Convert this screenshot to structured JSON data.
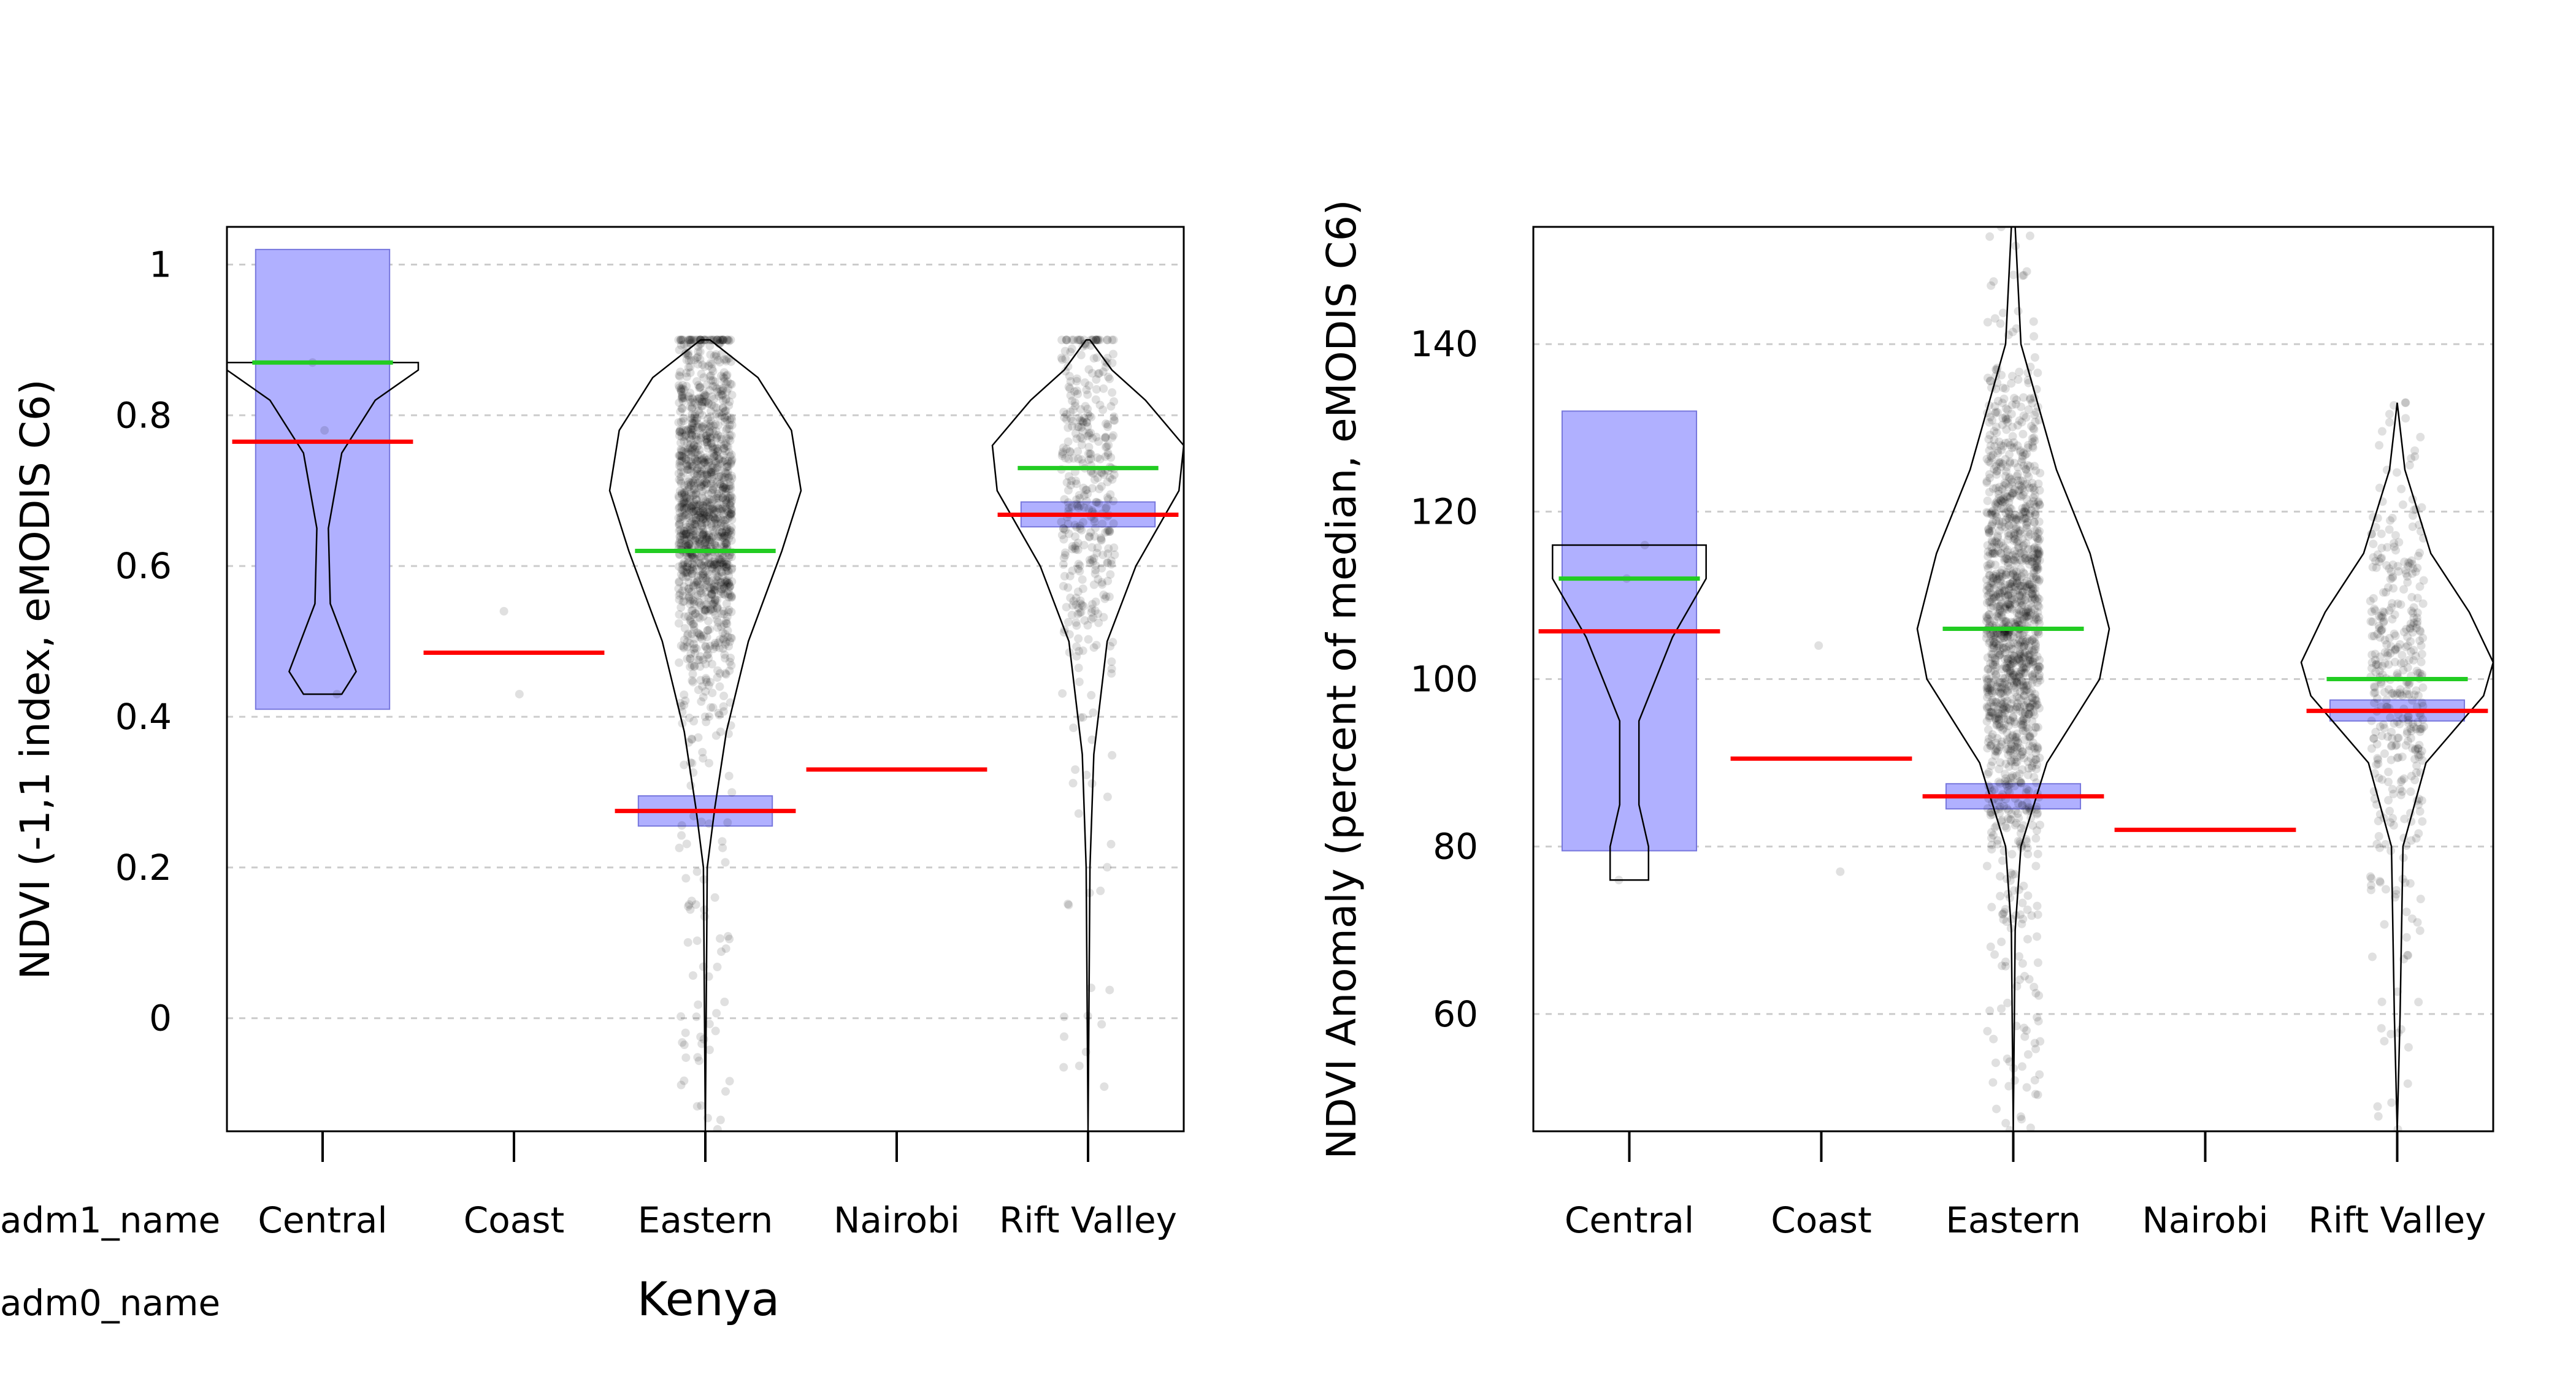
{
  "chart_data": [
    {
      "type": "pirateplot",
      "ylabel": "NDVI (-1,1 index, eMODIS C6)",
      "ylim": [
        -0.15,
        1.05
      ],
      "yticks": [
        0,
        0.2,
        0.4,
        0.6,
        0.8,
        1
      ],
      "ytick_labels": [
        "0",
        "0.2",
        "0.4",
        "0.6",
        "0.8",
        "1"
      ],
      "categories": [
        "Central",
        "Coast",
        "Eastern",
        "Nairobi",
        "Rift Valley"
      ],
      "row_labels": {
        "adm1": "adm1_name",
        "adm0": "adm0_name"
      },
      "group_label": "Kenya",
      "grid": true,
      "series": [
        {
          "category": "Central",
          "mean": 0.765,
          "median": 0.87,
          "ci": [
            0.41,
            1.02
          ],
          "points_range": [
            0.43,
            0.87
          ],
          "n_points": 3
        },
        {
          "category": "Coast",
          "mean": 0.485,
          "median": null,
          "ci": null,
          "points_range": [
            0.43,
            0.54
          ],
          "n_points": 2
        },
        {
          "category": "Eastern",
          "mean": 0.275,
          "median": 0.62,
          "ci": [
            0.255,
            0.295
          ],
          "points_range": [
            -0.15,
            0.9
          ],
          "n_points": 1400
        },
        {
          "category": "Nairobi",
          "mean": 0.33,
          "median": null,
          "ci": null,
          "points_range": [
            0.33,
            0.33
          ],
          "n_points": 1
        },
        {
          "category": "Rift Valley",
          "mean": 0.668,
          "median": 0.73,
          "ci": [
            0.652,
            0.685
          ],
          "points_range": [
            -0.15,
            0.9
          ],
          "n_points": 400
        }
      ]
    },
    {
      "type": "pirateplot",
      "ylabel": "NDVI Anomaly (percent of median, eMODIS C6)",
      "ylim": [
        46,
        154
      ],
      "yticks": [
        60,
        80,
        100,
        120,
        140
      ],
      "ytick_labels": [
        "60",
        "80",
        "100",
        "120",
        "140"
      ],
      "categories": [
        "Central",
        "Coast",
        "Eastern",
        "Nairobi",
        "Rift Valley"
      ],
      "grid": true,
      "series": [
        {
          "category": "Central",
          "mean": 105.7,
          "median": 112,
          "ci": [
            79.5,
            132
          ],
          "points_range": [
            76,
            116
          ],
          "n_points": 3
        },
        {
          "category": "Coast",
          "mean": 90.5,
          "median": null,
          "ci": null,
          "points_range": [
            77,
            104
          ],
          "n_points": 2
        },
        {
          "category": "Eastern",
          "mean": 86,
          "median": 106,
          "ci": [
            84.5,
            87.5
          ],
          "points_range": [
            46,
            154
          ],
          "n_points": 1400
        },
        {
          "category": "Nairobi",
          "mean": 82,
          "median": null,
          "ci": null,
          "points_range": [
            82,
            82
          ],
          "n_points": 1
        },
        {
          "category": "Rift Valley",
          "mean": 96.2,
          "median": 100,
          "ci": [
            95,
            97.5
          ],
          "points_range": [
            46,
            133
          ],
          "n_points": 400
        }
      ]
    }
  ],
  "colors": {
    "mean": "#ff0000",
    "median": "#22cc22",
    "ci_fill": "#b0b0ff",
    "ci_stroke": "#7777dd",
    "points": "#000000",
    "grid": "#cccccc"
  }
}
